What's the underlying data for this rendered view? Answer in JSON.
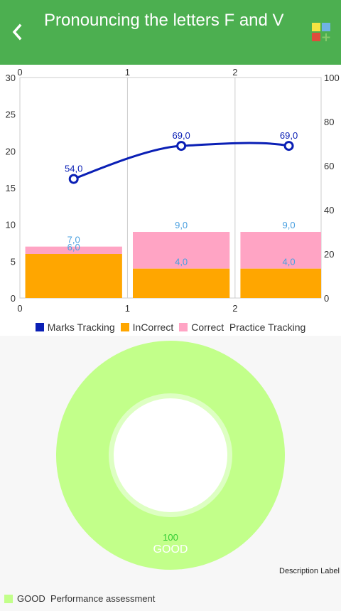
{
  "header": {
    "title": "Pronouncing the letters F and V",
    "back_icon": "chevron-left-icon",
    "apps_icon": "color-grid-apps-icon"
  },
  "colors": {
    "appbar": "#4caf50",
    "marks": "#0a1fb5",
    "incorrect": "#ffa600",
    "correct": "#ffa4c4",
    "donut": "#c2ff8a",
    "value_label_blue": "#4aa0e0"
  },
  "chart_data": {
    "type": "bar",
    "x_ticks": [
      "0",
      "1",
      "2"
    ],
    "left_axis": {
      "ticks": [
        "0",
        "5",
        "10",
        "15",
        "20",
        "25",
        "30"
      ],
      "ylim": [
        0,
        30
      ]
    },
    "right_axis": {
      "ticks": [
        "0",
        "20",
        "40",
        "60",
        "80",
        "100"
      ],
      "ylim": [
        0,
        100
      ]
    },
    "bars": [
      {
        "x": 0.5,
        "incorrect": 6,
        "correct": 7,
        "incorrect_label": "6,0",
        "total_label": "7,0"
      },
      {
        "x": 1.5,
        "incorrect": 4,
        "correct": 9,
        "incorrect_label": "4,0",
        "total_label": "9,0"
      },
      {
        "x": 2.5,
        "incorrect": 4,
        "correct": 9,
        "incorrect_label": "4,0",
        "total_label": "9,0"
      }
    ],
    "line": {
      "name": "Marks Tracking",
      "axis": "right",
      "points": [
        {
          "x": 0.5,
          "y": 54,
          "label": "54,0"
        },
        {
          "x": 1.5,
          "y": 69,
          "label": "69,0"
        },
        {
          "x": 2.5,
          "y": 69,
          "label": "69,0"
        }
      ]
    },
    "legend": [
      "Marks Tracking",
      "InCorrect",
      "Correct  Practice Tracking"
    ]
  },
  "donut": {
    "value": "100",
    "label": "GOOD",
    "description": "Description Label",
    "legend": "GOOD  Performance assessment"
  }
}
